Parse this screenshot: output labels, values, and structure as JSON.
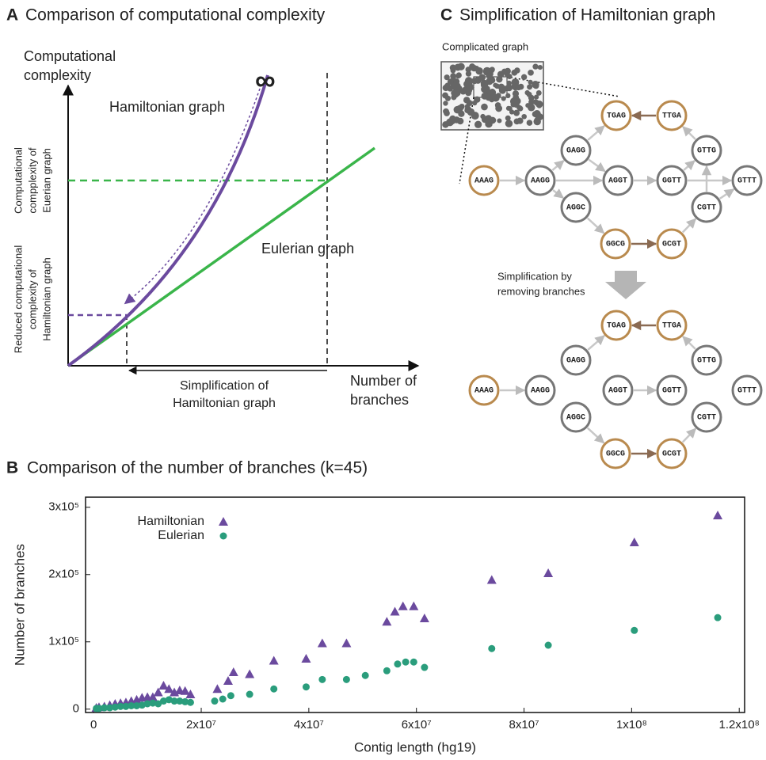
{
  "panel_a": {
    "label": "A",
    "title": "Comparison of computational complexity",
    "y_axis_label": [
      "Computational",
      "complexity"
    ],
    "x_axis_label": [
      "Number of",
      "branches"
    ],
    "hamiltonian_label": "Hamiltonian graph",
    "eulerian_label": "Eulerian graph",
    "infinity": "∞",
    "euler_level_label": [
      "Computational",
      "compplexity of",
      "Euerian graph"
    ],
    "reduced_level_label": [
      "Reduced computational",
      "complexity of",
      "Hamiltonian graph"
    ],
    "simplification_label": [
      "Simplification of",
      "Hamiltonian graph"
    ]
  },
  "chart_data": {
    "type": "scatter",
    "label": "B",
    "title": "Comparison of the number of branches (k=45)",
    "x_label": "Contig length (hg19)",
    "y_label": "Number of branches",
    "xlim": [
      -1500000,
      121000000
    ],
    "ylim": [
      -5000,
      315000
    ],
    "xticks": [
      0,
      {
        "value": 20000000,
        "label": "2x10⁷"
      },
      {
        "value": 40000000,
        "label": "4x10⁷"
      },
      {
        "value": 60000000,
        "label": "6x10⁷"
      },
      {
        "value": 80000000,
        "label": "8x10⁷"
      },
      {
        "value": 100000000,
        "label": "1x10⁸"
      },
      {
        "value": 120000000,
        "label": "1.2x10⁸"
      }
    ],
    "yticks": [
      0,
      {
        "value": 100000,
        "label": "1x10⁵"
      },
      {
        "value": 200000,
        "label": "2x10⁵"
      },
      {
        "value": 300000,
        "label": "3x10⁵"
      }
    ],
    "series": [
      {
        "name": "Hamiltonian",
        "color": "#6b4a9e",
        "marker": "triangle",
        "x": [
          500000,
          1000000,
          2000000,
          3000000,
          4000000,
          5000000,
          6000000,
          7000000,
          8000000,
          9000000,
          10000000,
          11000000,
          12000000,
          13000000,
          14000000,
          15000000,
          16000000,
          17000000,
          18000000,
          23000000,
          25000000,
          26000000,
          29000000,
          33500000,
          39500000,
          42500000,
          47000000,
          54500000,
          56000000,
          57500000,
          59500000,
          61500000,
          74000000,
          84500000,
          100500000,
          116000000
        ],
        "values": [
          2000,
          3000,
          4000,
          6000,
          8000,
          9000,
          10000,
          12000,
          14000,
          17000,
          18000,
          18000,
          25000,
          35000,
          30000,
          25000,
          28000,
          27000,
          22000,
          30000,
          42000,
          55000,
          52000,
          72000,
          75000,
          98000,
          98000,
          130000,
          145000,
          153000,
          153000,
          135000,
          192000,
          202000,
          248000,
          288000
        ]
      },
      {
        "name": "Eulerian",
        "color": "#2a9d7c",
        "marker": "circle",
        "x": [
          500000,
          1000000,
          2000000,
          3000000,
          4000000,
          5000000,
          6000000,
          7000000,
          8000000,
          9000000,
          10000000,
          11000000,
          12000000,
          13000000,
          14000000,
          15000000,
          16000000,
          17000000,
          18000000,
          22500000,
          24000000,
          25500000,
          29000000,
          33500000,
          39500000,
          42500000,
          47000000,
          50500000,
          54500000,
          56500000,
          58000000,
          59500000,
          61500000,
          74000000,
          84500000,
          100500000,
          116000000
        ],
        "values": [
          1000,
          1000,
          2000,
          2000,
          3000,
          4000,
          4000,
          5000,
          5000,
          6000,
          8000,
          9000,
          8000,
          12000,
          14000,
          12000,
          12000,
          11000,
          10000,
          12000,
          15000,
          20000,
          22000,
          30000,
          33000,
          44000,
          44000,
          50000,
          57000,
          67000,
          70000,
          70000,
          62000,
          90000,
          95000,
          117000,
          136000
        ]
      }
    ]
  },
  "panel_c": {
    "label": "C",
    "title": "Simplification of Hamiltonian graph",
    "inset_label": "Complicated graph",
    "step_label": [
      "Simplification by",
      "removing branches"
    ],
    "top_graph": {
      "nodes": [
        "AAAG",
        "AAGG",
        "GAGG",
        "AGGC",
        "AGGT",
        "GGCG",
        "GCGT",
        "GGTT",
        "GTTG",
        "CGTT",
        "GTTT",
        "TGAG",
        "TTGA"
      ]
    },
    "bottom_graph": {
      "nodes": [
        "AAAG",
        "AAGG",
        "GAGG",
        "AGGC",
        "AGGT",
        "GGCG",
        "GCGT",
        "GGTT",
        "GTTG",
        "CGTT",
        "GTTT",
        "TGAG",
        "TTGA"
      ]
    }
  }
}
